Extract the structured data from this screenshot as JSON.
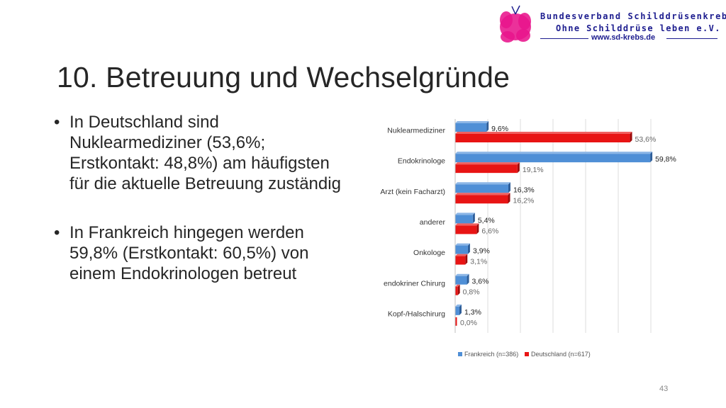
{
  "header": {
    "org_line1": "Bundesverband Schilddrüsenkrebs",
    "org_line2": "Ohne Schilddrüse leben e.V.",
    "org_url": "www.sd-krebs.de",
    "logo_icon": "pink-butterfly-figure-icon",
    "logo_color": "#e8148c"
  },
  "slide": {
    "title": "10. Betreuung und Wechselgründe",
    "bullets": [
      "In Deutschland sind Nuklearmediziner (53,6%; Erstkontakt: 48,8%) am häufigsten für die aktuelle Betreuung zuständig",
      "In Frankreich hingegen werden 59,8% (Erstkontakt: 60,5%) von einem Endokrinologen betreut"
    ],
    "page_number": "43"
  },
  "chart_data": {
    "type": "bar",
    "orientation": "horizontal",
    "categories": [
      "Nuklearmediziner",
      "Endokrinologe",
      "Arzt (kein Facharzt)",
      "anderer",
      "Onkologe",
      "endokriner Chirurg",
      "Kopf-/Halschirurg"
    ],
    "series": [
      {
        "name": "Frankreich (n=386)",
        "values": [
          9.6,
          59.8,
          16.3,
          5.4,
          3.9,
          3.6,
          1.3
        ],
        "labels": [
          "9,6%",
          "59,8%",
          "16,3%",
          "5,4%",
          "3,9%",
          "3,6%",
          "1,3%"
        ],
        "color": "#4f8fd6"
      },
      {
        "name": "Deutschland (n=617)",
        "values": [
          53.6,
          19.1,
          16.2,
          6.6,
          3.1,
          0.8,
          0.0
        ],
        "labels": [
          "53,6%",
          "19,1%",
          "16,2%",
          "6,6%",
          "3,1%",
          "0,8%",
          "0,0%"
        ],
        "color": "#e81414"
      }
    ],
    "xlim": [
      0,
      60
    ],
    "grid": true,
    "legend": "bottom",
    "title": "",
    "xlabel": "",
    "ylabel": ""
  }
}
